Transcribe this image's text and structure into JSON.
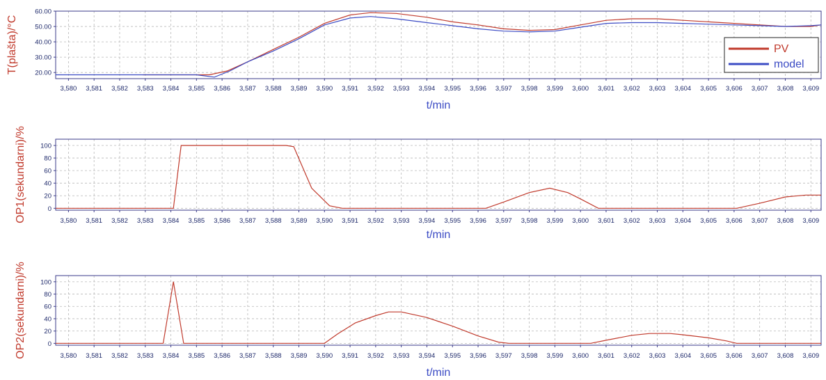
{
  "chart_data": [
    {
      "type": "line",
      "ylabel": "T(plašta)/°C",
      "xlabel": "t/min",
      "xlim": [
        3.5795,
        3.6094
      ],
      "ylim": [
        16,
        60
      ],
      "yticks": [
        20,
        30,
        40,
        50,
        60
      ],
      "ytick_labels": [
        "20.00",
        "30.00",
        "40.00",
        "50.00",
        "60.00"
      ],
      "xtick_labels": [
        "3,580",
        "3,581",
        "3,582",
        "3,583",
        "3,584",
        "3,585",
        "3,586",
        "3,587",
        "3,588",
        "3,589",
        "3,590",
        "3,591",
        "3,592",
        "3,593",
        "3,594",
        "3,595",
        "3,596",
        "3,597",
        "3,598",
        "3,599",
        "3,600",
        "3,601",
        "3,602",
        "3,603",
        "3,604",
        "3,605",
        "3,606",
        "3,607",
        "3,608",
        "3,609"
      ],
      "grid": true,
      "legend": "top-right",
      "series": [
        {
          "name": "PV",
          "color": "#c0392b",
          "x": [
            3.5829,
            3.5855,
            3.5862,
            3.587,
            3.588,
            3.589,
            3.59,
            3.591,
            3.5918,
            3.5928,
            3.594,
            3.595,
            3.596,
            3.597,
            3.598,
            3.599,
            3.6,
            3.601,
            3.602,
            3.603,
            3.604,
            3.605,
            3.606,
            3.607,
            3.608,
            3.609,
            3.6094
          ],
          "y": [
            18.5,
            18.5,
            21,
            27,
            35,
            43,
            52,
            57.5,
            59,
            58.5,
            56,
            53,
            51,
            48.5,
            47.5,
            48,
            51,
            54,
            55,
            55,
            54,
            53,
            52,
            51,
            50,
            50,
            51
          ]
        },
        {
          "name": "model",
          "color": "#3b4bc4",
          "x": [
            3.5795,
            3.585,
            3.5857,
            3.5863,
            3.587,
            3.588,
            3.589,
            3.59,
            3.591,
            3.5918,
            3.5928,
            3.594,
            3.595,
            3.596,
            3.597,
            3.598,
            3.599,
            3.6,
            3.601,
            3.602,
            3.603,
            3.604,
            3.605,
            3.606,
            3.607,
            3.608,
            3.609,
            3.6094
          ],
          "y": [
            18.5,
            18.5,
            17,
            21,
            27,
            34,
            42,
            51,
            55.5,
            56.5,
            55,
            52.5,
            50.5,
            48.5,
            47,
            46.5,
            47,
            49.5,
            52,
            52.5,
            52.5,
            52,
            51.5,
            51,
            50.5,
            50,
            50.5,
            51
          ]
        }
      ]
    },
    {
      "type": "line",
      "ylabel": "OP1(sekundarni)/%",
      "xlabel": "t/min",
      "xlim": [
        3.5795,
        3.6094
      ],
      "ylim": [
        -3,
        110
      ],
      "yticks": [
        0,
        20,
        40,
        60,
        80,
        100
      ],
      "ytick_labels": [
        "0",
        "20",
        "40",
        "60",
        "80",
        "100"
      ],
      "xtick_labels": [
        "3,580",
        "3,581",
        "3,582",
        "3,583",
        "3,584",
        "3,585",
        "3,586",
        "3,587",
        "3,588",
        "3,589",
        "3,590",
        "3,591",
        "3,592",
        "3,593",
        "3,594",
        "3,595",
        "3,596",
        "3,597",
        "3,598",
        "3,599",
        "3,600",
        "3,601",
        "3,602",
        "3,603",
        "3,604",
        "3,605",
        "3,606",
        "3,607",
        "3,608",
        "3,609"
      ],
      "grid": true,
      "series": [
        {
          "color": "#c0392b",
          "x": [
            3.5795,
            3.5841,
            3.5844,
            3.5885,
            3.5888,
            3.5895,
            3.5902,
            3.5907,
            3.5963,
            3.597,
            3.598,
            3.5988,
            3.5995,
            3.6,
            3.6007,
            3.6061,
            3.607,
            3.608,
            3.6088,
            3.6094
          ],
          "y": [
            0,
            0,
            100,
            100,
            98,
            32,
            4,
            0,
            0,
            10,
            25,
            32,
            25,
            15,
            0,
            0,
            8,
            18,
            21,
            21
          ]
        }
      ]
    },
    {
      "type": "line",
      "ylabel": "OP2(sekundarni)/%",
      "xlabel": "t/min",
      "xlim": [
        3.5795,
        3.6094
      ],
      "ylim": [
        -3,
        110
      ],
      "yticks": [
        0,
        20,
        40,
        60,
        80,
        100
      ],
      "ytick_labels": [
        "0",
        "20",
        "40",
        "60",
        "80",
        "100"
      ],
      "xtick_labels": [
        "3,580",
        "3,581",
        "3,582",
        "3,583",
        "3,584",
        "3,585",
        "3,586",
        "3,587",
        "3,588",
        "3,589",
        "3,590",
        "3,591",
        "3,592",
        "3,593",
        "3,594",
        "3,595",
        "3,596",
        "3,597",
        "3,598",
        "3,599",
        "3,600",
        "3,601",
        "3,602",
        "3,603",
        "3,604",
        "3,605",
        "3,606",
        "3,607",
        "3,608",
        "3,609"
      ],
      "grid": true,
      "series": [
        {
          "color": "#c0392b",
          "x": [
            3.5795,
            3.5837,
            3.5841,
            3.5845,
            3.59,
            3.5905,
            3.5912,
            3.592,
            3.5925,
            3.593,
            3.594,
            3.595,
            3.596,
            3.5968,
            3.5972,
            3.6004,
            3.601,
            3.602,
            3.6027,
            3.6035,
            3.604,
            3.605,
            3.6057,
            3.6061,
            3.6094
          ],
          "y": [
            0,
            0,
            100,
            0,
            0,
            15,
            33,
            45,
            51,
            51,
            42,
            28,
            12,
            2,
            0,
            0,
            5,
            13,
            16,
            16,
            14,
            9,
            4,
            0,
            0
          ]
        }
      ]
    }
  ]
}
